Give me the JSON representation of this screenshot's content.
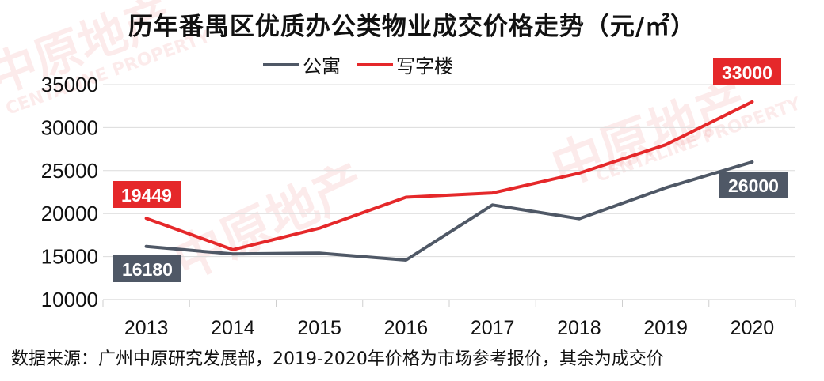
{
  "title": "历年番禺区优质办公类物业成交价格走势（元/㎡）",
  "legend": [
    {
      "name": "公寓",
      "color": "#4f5866"
    },
    {
      "name": "写字楼",
      "color": "#e5282a"
    }
  ],
  "source_note": "数据来源：广州中原研究发展部，2019-2020年价格为市场参考报价，其余为成交价",
  "watermark": {
    "cn": "中原地产",
    "en": "CENTALINE PROPERTY"
  },
  "chart_data": {
    "type": "line",
    "title": "历年番禺区优质办公类物业成交价格走势（元/㎡）",
    "xlabel": "",
    "ylabel": "元/㎡",
    "categories": [
      "2013",
      "2014",
      "2015",
      "2016",
      "2017",
      "2018",
      "2019",
      "2020"
    ],
    "series": [
      {
        "name": "公寓",
        "color": "#4f5866",
        "values": [
          16180,
          15300,
          15400,
          14600,
          21000,
          19400,
          23000,
          26000
        ]
      },
      {
        "name": "写字楼",
        "color": "#e5282a",
        "values": [
          19449,
          15800,
          18300,
          21900,
          22400,
          24700,
          28000,
          33000
        ]
      }
    ],
    "yticks": [
      "10000",
      "15000",
      "20000",
      "25000",
      "30000",
      "35000"
    ],
    "ylim": [
      10000,
      35000
    ],
    "grid": true,
    "legend_position": "top",
    "data_labels": [
      {
        "series": "写字楼",
        "category": "2013",
        "text": "19449"
      },
      {
        "series": "写字楼",
        "category": "2020",
        "text": "33000"
      },
      {
        "series": "公寓",
        "category": "2013",
        "text": "16180"
      },
      {
        "series": "公寓",
        "category": "2020",
        "text": "26000"
      }
    ]
  }
}
